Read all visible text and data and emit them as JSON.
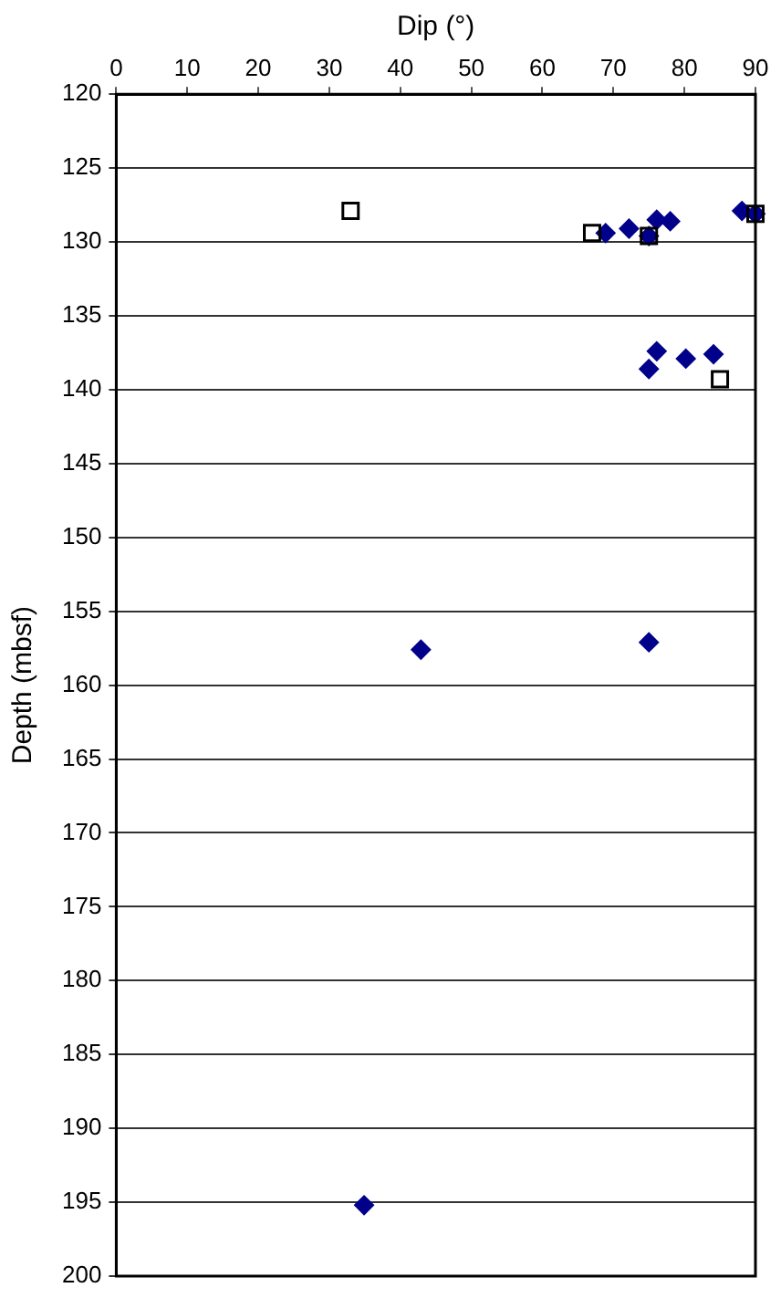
{
  "chart_data": {
    "type": "scatter",
    "xlabel": "Dip (°)",
    "ylabel": "Depth (mbsf)",
    "xlim": [
      0,
      90
    ],
    "xticks": [
      0,
      10,
      20,
      30,
      40,
      50,
      60,
      70,
      80,
      90
    ],
    "ylim": [
      200,
      120
    ],
    "yticks": [
      120,
      125,
      130,
      135,
      140,
      145,
      150,
      155,
      160,
      165,
      170,
      175,
      180,
      185,
      190,
      195,
      200
    ],
    "grid": "y",
    "legend": false,
    "series": [
      {
        "color": "#00008b",
        "marker": "diamond",
        "x": [
          68.9,
          72.2,
          75.0,
          76.1,
          78.0,
          88.1,
          90,
          76.1,
          75.0,
          80.2,
          84.1,
          42.9,
          75.0,
          34.9
        ],
        "values": [
          129.4,
          129.1,
          129.6,
          128.5,
          128.6,
          127.9,
          128.1,
          137.4,
          138.6,
          137.9,
          137.6,
          157.6,
          157.1,
          195.2
        ]
      },
      {
        "color": "#000000",
        "marker": "square",
        "x": [
          33.0,
          67.0,
          75.0,
          90,
          85.0
        ],
        "values": [
          127.9,
          129.4,
          129.6,
          128.1,
          139.3
        ]
      }
    ]
  }
}
